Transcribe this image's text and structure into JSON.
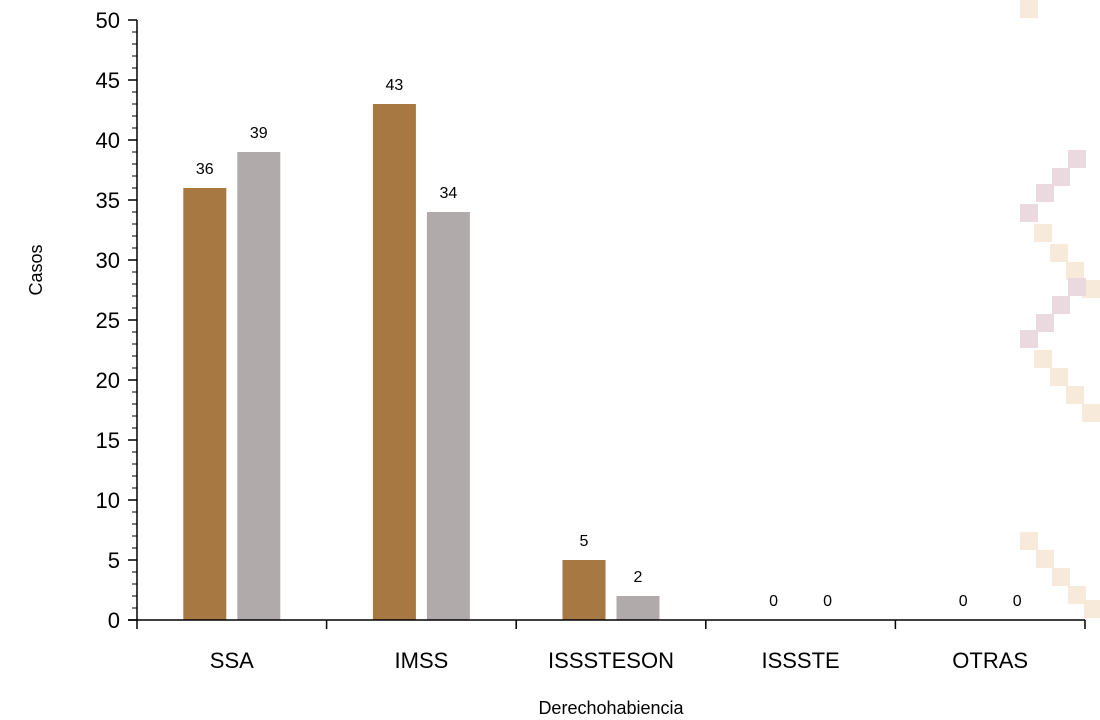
{
  "chart_data": {
    "type": "bar",
    "title": "",
    "xlabel": "Derechohabiencia",
    "ylabel": "Casos",
    "categories": [
      "SSA",
      "IMSS",
      "ISSSTESON",
      "ISSSTE",
      "OTRAS"
    ],
    "series": [
      {
        "values": [
          36,
          43,
          5,
          0,
          0
        ],
        "color": "#a87843"
      },
      {
        "values": [
          39,
          34,
          2,
          0,
          0
        ],
        "color": "#b0abaa"
      }
    ],
    "ylim": [
      0,
      50
    ],
    "yticks": [
      0,
      5,
      10,
      15,
      20,
      25,
      30,
      35,
      40,
      45,
      50
    ],
    "grid": false,
    "legend": "none",
    "data_labels": true
  },
  "decoration": {
    "pattern_colors": [
      "#ead9de",
      "#f8eadb"
    ]
  }
}
